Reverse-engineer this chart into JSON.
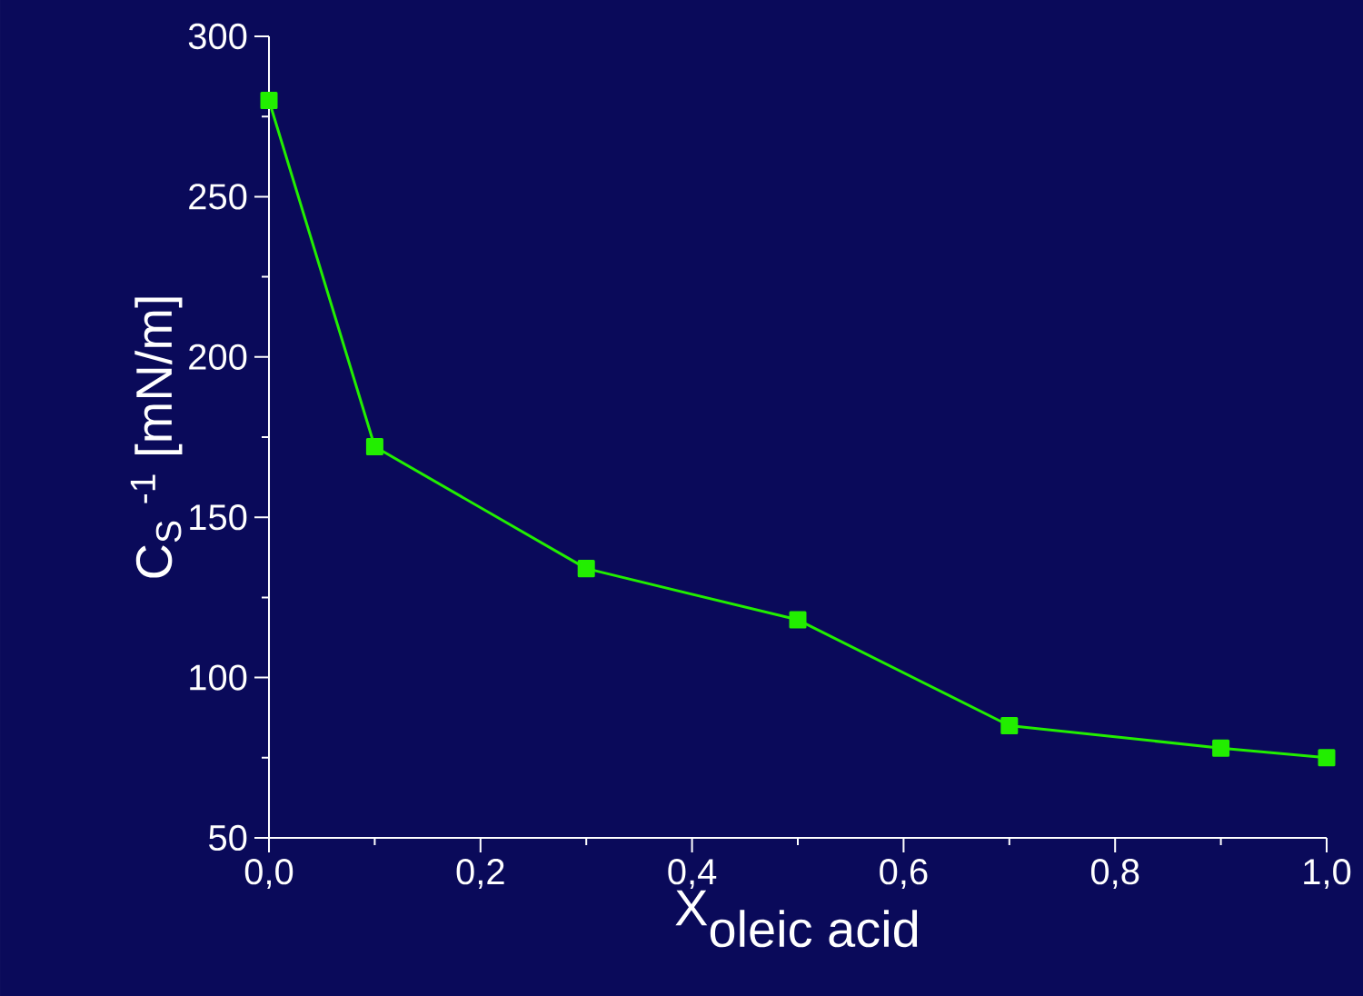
{
  "chart_data": {
    "type": "line",
    "xlabel": "\\mbox{X}_{\\mbox{oleic acid}}",
    "ylabel": "C$_{S}$ $^{-1}$ [mN/m]",
    "x": [
      0,
      0.1,
      0.3,
      0.5,
      0.7,
      0.9,
      1.0
    ],
    "series": [
      {
        "color": "#22ee00",
        "values": [
          280,
          172,
          134,
          118,
          85,
          78,
          75
        ]
      }
    ],
    "xlim": [
      0,
      1
    ],
    "ylim": [
      50,
      300
    ],
    "xticks": [
      {
        "value": 0,
        "label": "0,0"
      },
      {
        "value": 0.2,
        "label": "0,2"
      },
      {
        "value": 0.4,
        "label": "0,4"
      },
      {
        "value": 0.6,
        "label": "0,6"
      },
      {
        "value": 0.8,
        "label": "0,8"
      },
      {
        "value": 1,
        "label": "1,0"
      }
    ],
    "yticks": [
      50,
      100,
      150,
      200,
      250,
      300
    ],
    "marker": "square",
    "line_style": "solid",
    "grid": false
  }
}
